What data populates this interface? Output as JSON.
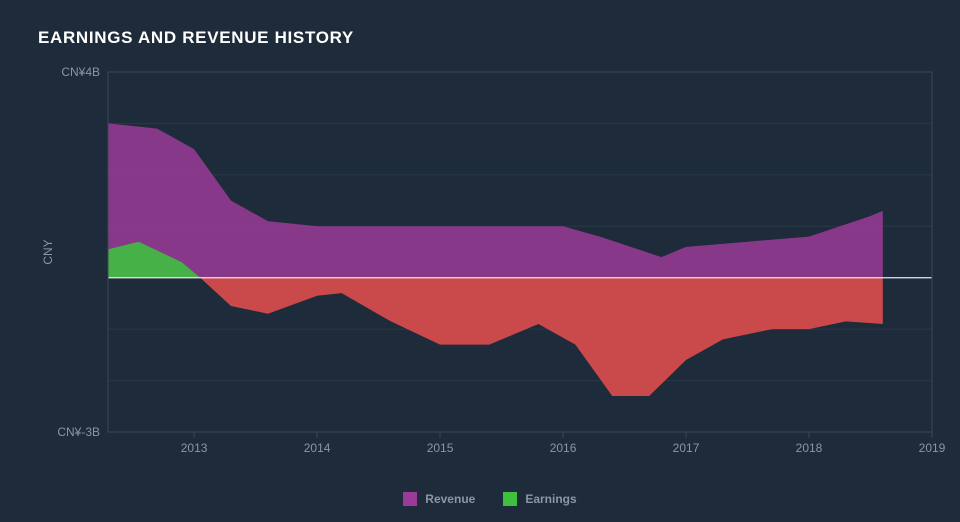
{
  "title": "EARNINGS AND REVENUE HISTORY",
  "chart": {
    "type": "area",
    "background_color": "#1d2b3a",
    "plot_border_color": "#3a4756",
    "grid_color": "#2a3847",
    "baseline_color": "#e8e8e8",
    "text_color": "#8a96a3",
    "title_color": "#ffffff",
    "title_fontsize": 17,
    "tick_fontsize": 12,
    "x_axis": {
      "min": 2012.3,
      "max": 2019,
      "ticks": [
        2013,
        2014,
        2015,
        2016,
        2017,
        2018,
        2019
      ],
      "tick_labels": [
        "2013",
        "2014",
        "2015",
        "2016",
        "2017",
        "2018",
        "2019"
      ]
    },
    "y_axis": {
      "label": "CNY",
      "min": -3,
      "max": 4,
      "ticks": [
        -3,
        0,
        4
      ],
      "tick_labels": [
        "CN¥-3B",
        "",
        "CN¥4B"
      ],
      "gridlines": [
        -3,
        -2,
        -1,
        0,
        1,
        2,
        3,
        4
      ]
    },
    "series": {
      "revenue": {
        "label": "Revenue",
        "color": "#9b3b98",
        "fill_opacity": 0.85,
        "x": [
          2012.3,
          2012.7,
          2013.0,
          2013.3,
          2013.6,
          2014.0,
          2014.4,
          2015.0,
          2015.5,
          2016.0,
          2016.3,
          2016.8,
          2017.0,
          2017.5,
          2018.0,
          2018.5,
          2018.6
        ],
        "y": [
          3.0,
          2.9,
          2.5,
          1.5,
          1.1,
          1.0,
          1.0,
          1.0,
          1.0,
          1.0,
          0.8,
          0.4,
          0.6,
          0.7,
          0.8,
          1.2,
          1.3
        ]
      },
      "earnings_pos": {
        "label": "Earnings",
        "color": "#3fbf3f",
        "fill_opacity": 0.9,
        "x": [
          2012.3,
          2012.55,
          2012.9,
          2013.05
        ],
        "y": [
          0.55,
          0.7,
          0.3,
          0.0
        ]
      },
      "earnings_neg": {
        "color": "#e94f4f",
        "fill_opacity": 0.85,
        "x": [
          2013.05,
          2013.3,
          2013.6,
          2014.0,
          2014.2,
          2014.6,
          2015.0,
          2015.4,
          2015.8,
          2016.1,
          2016.4,
          2016.7,
          2017.0,
          2017.3,
          2017.7,
          2018.0,
          2018.3,
          2018.6
        ],
        "y": [
          0.0,
          -0.55,
          -0.7,
          -0.35,
          -0.3,
          -0.85,
          -1.3,
          -1.3,
          -0.9,
          -1.3,
          -2.3,
          -2.3,
          -1.6,
          -1.2,
          -1.0,
          -1.0,
          -0.85,
          -0.9
        ]
      }
    },
    "legend": [
      {
        "label": "Revenue",
        "color": "#9b3b98"
      },
      {
        "label": "Earnings",
        "color": "#3fbf3f"
      }
    ]
  }
}
